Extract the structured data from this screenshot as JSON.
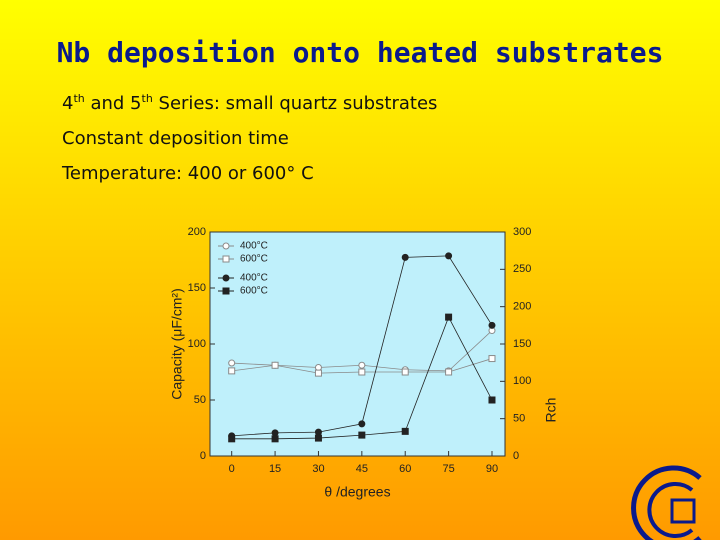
{
  "title": "Nb deposition onto heated substrates",
  "bullets": [
    [
      "4",
      "th",
      " and 5",
      "th",
      " Series: small quartz substrates"
    ],
    [
      "Constant deposition time"
    ],
    [
      "Temperature: 400 or 600° C"
    ]
  ],
  "chart_data": {
    "type": "line",
    "x_label": "θ /degrees",
    "y_label": "Capacity (μF/cm²)",
    "y2_label": "Rch",
    "x": [
      0,
      15,
      30,
      45,
      60,
      75,
      90
    ],
    "xlim": [
      -7.5,
      94.5
    ],
    "xticks": [
      0,
      15,
      30,
      45,
      60,
      75,
      90
    ],
    "ylim": [
      0,
      200
    ],
    "yticks": [
      0,
      50,
      100,
      150,
      200
    ],
    "y2lim": [
      0,
      300
    ],
    "y2ticks": [
      0,
      50,
      100,
      150,
      200,
      250,
      300
    ],
    "legend": "upper left",
    "series": [
      {
        "name": "400°C",
        "color": "#8a8a8a",
        "marker": "circle-open",
        "values": [
          83,
          81,
          79,
          81,
          77,
          76,
          112
        ]
      },
      {
        "name": "600°C",
        "color": "#8a8a8a",
        "marker": "square-open",
        "values": [
          76,
          81,
          74,
          75,
          75,
          75,
          87
        ]
      },
      {
        "name": "400°C",
        "color": "#222222",
        "marker": "circle",
        "axis": "y2",
        "values": [
          27,
          31,
          32,
          43,
          266,
          268,
          175
        ]
      },
      {
        "name": "600°C",
        "color": "#222222",
        "marker": "square",
        "axis": "y2",
        "values": [
          23,
          23,
          24,
          28,
          33,
          186,
          75
        ]
      }
    ]
  }
}
